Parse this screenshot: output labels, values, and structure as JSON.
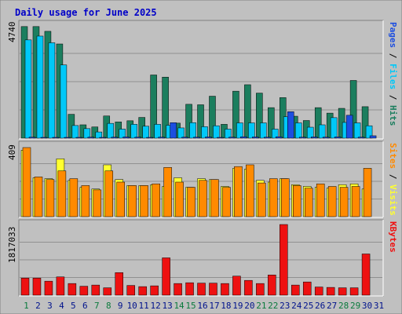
{
  "chart_data": {
    "type": "bar",
    "title": "Daily usage for June 2025",
    "categories": [
      "1",
      "2",
      "3",
      "4",
      "5",
      "6",
      "7",
      "8",
      "9",
      "10",
      "11",
      "12",
      "13",
      "14",
      "15",
      "16",
      "17",
      "18",
      "19",
      "20",
      "21",
      "22",
      "23",
      "24",
      "25",
      "26",
      "27",
      "28",
      "29",
      "30",
      "31"
    ],
    "weekend_days": [
      "1",
      "7",
      "8",
      "14",
      "15",
      "21",
      "22",
      "28",
      "29"
    ],
    "colors": {
      "hits": "#1b7e5e",
      "files": "#00c8f8",
      "pages": "#1c4ee0",
      "visits": "#ffff30",
      "sites": "#ff8a00",
      "kbytes": "#ee1111",
      "weekday_label": "#00128c",
      "weekend_label": "#0a7a3c",
      "title": "#0000c8",
      "background": "#c0c0c0",
      "plot_background": "#c0c0c0"
    },
    "panels": [
      {
        "id": "hits-files-pages",
        "ymax_label": "4740",
        "ymax": 4740,
        "legend": [
          {
            "key": "pages",
            "label": "Pages"
          },
          {
            "key": "files",
            "label": "Files"
          },
          {
            "key": "hits",
            "label": "Hits"
          }
        ],
        "separator": " / ",
        "series": [
          {
            "name": "Hits",
            "key": "hits",
            "values": [
              4680,
              4680,
              4480,
              3950,
              1000,
              560,
              470,
              930,
              680,
              730,
              870,
              2650,
              2560,
              630,
              1420,
              1400,
              1760,
              580,
              1970,
              2240,
              1890,
              1280,
              1700,
              920,
              740,
              1280,
              1050,
              1250,
              2420,
              1320,
              0
            ]
          },
          {
            "name": "Files",
            "key": "files",
            "values": [
              4120,
              4280,
              4000,
              3070,
              530,
              400,
              260,
              620,
              380,
              580,
              500,
              580,
              540,
              430,
              650,
              480,
              520,
              380,
              640,
              640,
              640,
              380,
              900,
              640,
              460,
              560,
              860,
              660,
              640,
              520,
              0
            ]
          },
          {
            "name": "Pages",
            "key": "pages",
            "values": [
              40,
              30,
              30,
              30,
              20,
              40,
              20,
              40,
              50,
              40,
              30,
              40,
              650,
              40,
              40,
              50,
              30,
              40,
              60,
              50,
              40,
              60,
              1110,
              40,
              50,
              40,
              50,
              960,
              40,
              100,
              0
            ]
          }
        ]
      },
      {
        "id": "visits-sites",
        "ymax_label": "409",
        "ymax": 409,
        "legend": [
          {
            "key": "sites",
            "label": "Sites"
          },
          {
            "key": "visits",
            "label": "Visits"
          }
        ],
        "separator": " / ",
        "series": [
          {
            "name": "Visits",
            "key": "visits",
            "values": [
              385,
              225,
              220,
              335,
              210,
              170,
              160,
              300,
              215,
              180,
              180,
              185,
              175,
              225,
              170,
              220,
              215,
              175,
              280,
              275,
              210,
              200,
              220,
              185,
              175,
              170,
              165,
              185,
              190,
              160,
              0
            ]
          },
          {
            "name": "Sites",
            "key": "sites",
            "values": [
              400,
              230,
              215,
              265,
              220,
              180,
              155,
              265,
              200,
              180,
              180,
              190,
              285,
              200,
              170,
              210,
              215,
              170,
              290,
              300,
              195,
              220,
              220,
              180,
              165,
              190,
              175,
              170,
              175,
              280,
              0
            ]
          }
        ]
      },
      {
        "id": "kbytes",
        "ymax_label": "1817033",
        "ymax": 1817033,
        "legend": [
          {
            "key": "kbytes",
            "label": "KBytes"
          }
        ],
        "separator": "",
        "series": [
          {
            "name": "KBytes",
            "key": "kbytes",
            "values": [
              440000,
              440000,
              360000,
              470000,
              300000,
              230000,
              260000,
              190000,
              580000,
              250000,
              220000,
              240000,
              960000,
              300000,
              320000,
              310000,
              310000,
              300000,
              490000,
              380000,
              300000,
              520000,
              1817033,
              260000,
              340000,
              210000,
              200000,
              190000,
              190000,
              1060000,
              0
            ]
          }
        ]
      }
    ]
  }
}
